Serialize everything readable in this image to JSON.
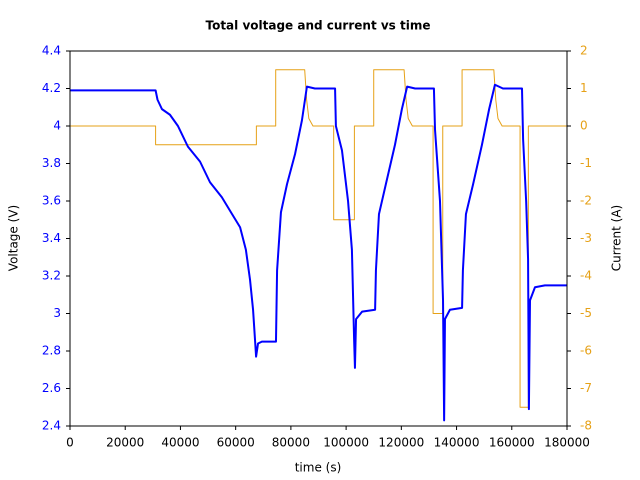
{
  "chart_data": {
    "type": "line",
    "title": "Total voltage and current vs time",
    "x_label": "time (s)",
    "y_label": "Voltage (V)",
    "y2_label": "Current (A)",
    "xlim": [
      0,
      180000
    ],
    "xticks": [
      0,
      20000,
      40000,
      60000,
      80000,
      100000,
      120000,
      140000,
      160000,
      180000
    ],
    "ylim": [
      2.4,
      4.4
    ],
    "yticks": [
      2.4,
      2.6,
      2.8,
      3,
      3.2,
      3.4,
      3.6,
      3.8,
      4,
      4.2,
      4.4
    ],
    "y2lim": [
      -8,
      2
    ],
    "y2ticks": [
      -8,
      -7,
      -6,
      -5,
      -4,
      -3,
      -2,
      -1,
      0,
      1,
      2
    ],
    "y_color": "#0000ff",
    "y2_color": "#e6a117",
    "series": [
      {
        "name": "Voltage",
        "color": "#0000ff",
        "axis": "y",
        "x": [
          0,
          31000,
          31700,
          33300,
          36200,
          39100,
          42700,
          47100,
          50700,
          55000,
          58700,
          61600,
          63700,
          65200,
          66300,
          67400,
          68100,
          69500,
          74600,
          75000,
          76400,
          78600,
          81500,
          84000,
          85800,
          88700,
          96000,
          96300,
          98500,
          100700,
          102100,
          102900,
          103200,
          103600,
          105800,
          110500,
          110800,
          111900,
          114400,
          117700,
          120200,
          122100,
          125000,
          131800,
          132200,
          134000,
          135100,
          135500,
          135800,
          137600,
          142000,
          142300,
          143400,
          146000,
          149200,
          151800,
          153900,
          156800,
          163700,
          164100,
          165200,
          165900,
          166200,
          166600,
          168400,
          172000,
          180000
        ],
        "values": [
          4.19,
          4.19,
          4.14,
          4.09,
          4.06,
          4.0,
          3.89,
          3.81,
          3.7,
          3.62,
          3.53,
          3.46,
          3.34,
          3.18,
          3.02,
          2.77,
          2.84,
          2.85,
          2.85,
          3.23,
          3.54,
          3.69,
          3.85,
          4.03,
          4.21,
          4.2,
          4.2,
          4.0,
          3.87,
          3.6,
          3.34,
          2.86,
          2.71,
          2.97,
          3.01,
          3.02,
          3.23,
          3.53,
          3.69,
          3.9,
          4.09,
          4.21,
          4.2,
          4.2,
          3.98,
          3.6,
          3.07,
          2.43,
          2.97,
          3.02,
          3.03,
          3.23,
          3.53,
          3.69,
          3.9,
          4.09,
          4.22,
          4.2,
          4.2,
          3.93,
          3.6,
          3.29,
          2.49,
          3.07,
          3.14,
          3.15,
          3.15
        ]
      },
      {
        "name": "Current",
        "color": "#e6a117",
        "axis": "y2",
        "x": [
          0,
          31000,
          31000,
          67500,
          67500,
          74500,
          74500,
          85000,
          85700,
          86500,
          88000,
          95500,
          95500,
          103000,
          103000,
          110000,
          110000,
          121000,
          121700,
          122500,
          124000,
          131500,
          131500,
          135000,
          135000,
          142000,
          142000,
          153500,
          154200,
          155000,
          156500,
          163000,
          163000,
          166000,
          166000,
          180000
        ],
        "values": [
          0,
          0,
          -0.5,
          -0.5,
          0,
          0,
          1.5,
          1.5,
          0.7,
          0.2,
          0,
          0,
          -2.5,
          -2.5,
          0,
          0,
          1.5,
          1.5,
          0.7,
          0.2,
          0,
          0,
          -5,
          -5,
          0,
          0,
          1.5,
          1.5,
          0.7,
          0.2,
          0,
          0,
          -7.5,
          -7.5,
          0,
          0
        ]
      }
    ]
  }
}
